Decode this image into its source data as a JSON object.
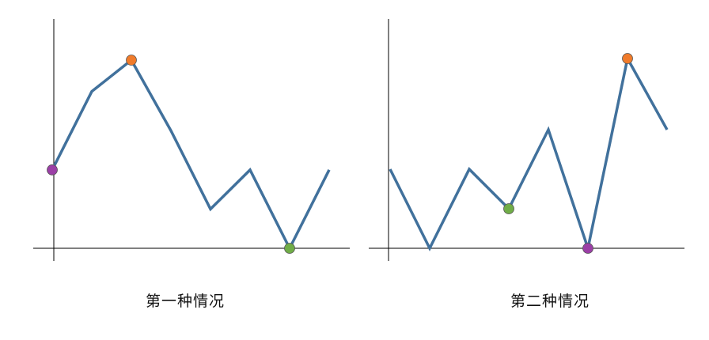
{
  "captions": {
    "left": "第一种情况",
    "right": "第二种情况"
  },
  "colors": {
    "line": "#41719C",
    "axis": "#000000",
    "purple": "#9B3FA6",
    "orange": "#F07B2B",
    "green": "#70AD47"
  },
  "panels": [
    {
      "name": "case-1",
      "values": [
        2,
        4,
        4.8,
        3,
        1,
        2,
        0,
        2
      ],
      "markers": [
        {
          "index": 0,
          "color_key": "purple"
        },
        {
          "index": 2,
          "color_key": "orange"
        },
        {
          "index": 6,
          "color_key": "green"
        }
      ]
    },
    {
      "name": "case-2",
      "values": [
        2,
        0,
        2,
        1,
        3,
        0,
        4.8,
        3
      ],
      "markers": [
        {
          "index": 3,
          "color_key": "green"
        },
        {
          "index": 5,
          "color_key": "purple"
        },
        {
          "index": 6,
          "color_key": "orange"
        }
      ]
    }
  ]
}
